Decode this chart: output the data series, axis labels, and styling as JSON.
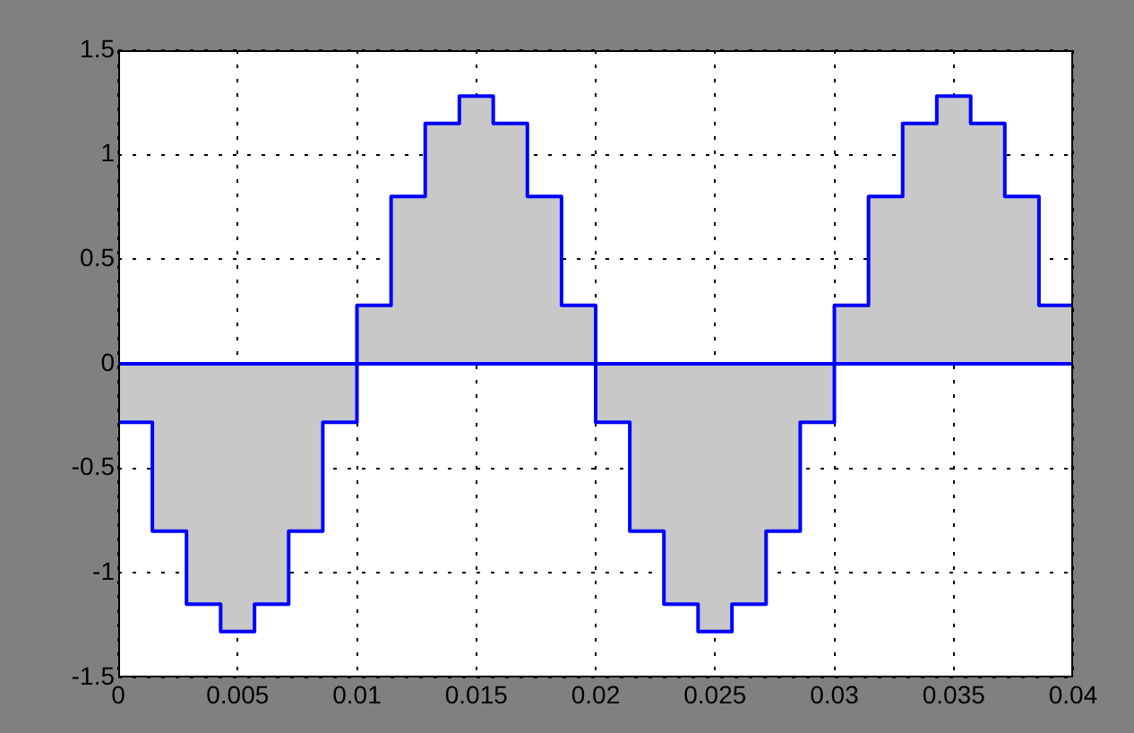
{
  "chart_data": {
    "type": "area",
    "xlim": [
      0,
      0.04
    ],
    "ylim": [
      -1.5,
      1.5
    ],
    "xticks": [
      0,
      0.005,
      0.01,
      0.015,
      0.02,
      0.025,
      0.03,
      0.035,
      0.04
    ],
    "yticks": [
      -1.5,
      -1,
      -0.5,
      0,
      0.5,
      1,
      1.5
    ],
    "grid": true,
    "legend": false,
    "line_style": "solid",
    "marker": "none",
    "ref_lines": [
      {
        "axis": "y",
        "value": 0,
        "color": "#0000ff"
      }
    ],
    "series": [
      {
        "type": "step",
        "color": "#0000ff",
        "x": [
          0,
          0.00143,
          0.00286,
          0.00429,
          0.00571,
          0.00714,
          0.00857,
          0.01,
          0.01143,
          0.01286,
          0.01429,
          0.01571,
          0.01714,
          0.01857,
          0.02,
          0.02143,
          0.02286,
          0.02429,
          0.02571,
          0.02714,
          0.02857,
          0.03,
          0.03143,
          0.03286,
          0.03429,
          0.03571,
          0.03714,
          0.03857,
          0.04
        ],
        "values": [
          -0.28,
          -0.8,
          -1.15,
          -1.28,
          -1.15,
          -0.8,
          -0.28,
          0.28,
          0.8,
          1.15,
          1.28,
          1.15,
          0.8,
          0.28,
          -0.28,
          -0.8,
          -1.15,
          -1.28,
          -1.15,
          -0.8,
          -0.28,
          0.28,
          0.8,
          1.15,
          1.28,
          1.15,
          0.8,
          0.28,
          0.28
        ]
      }
    ]
  }
}
